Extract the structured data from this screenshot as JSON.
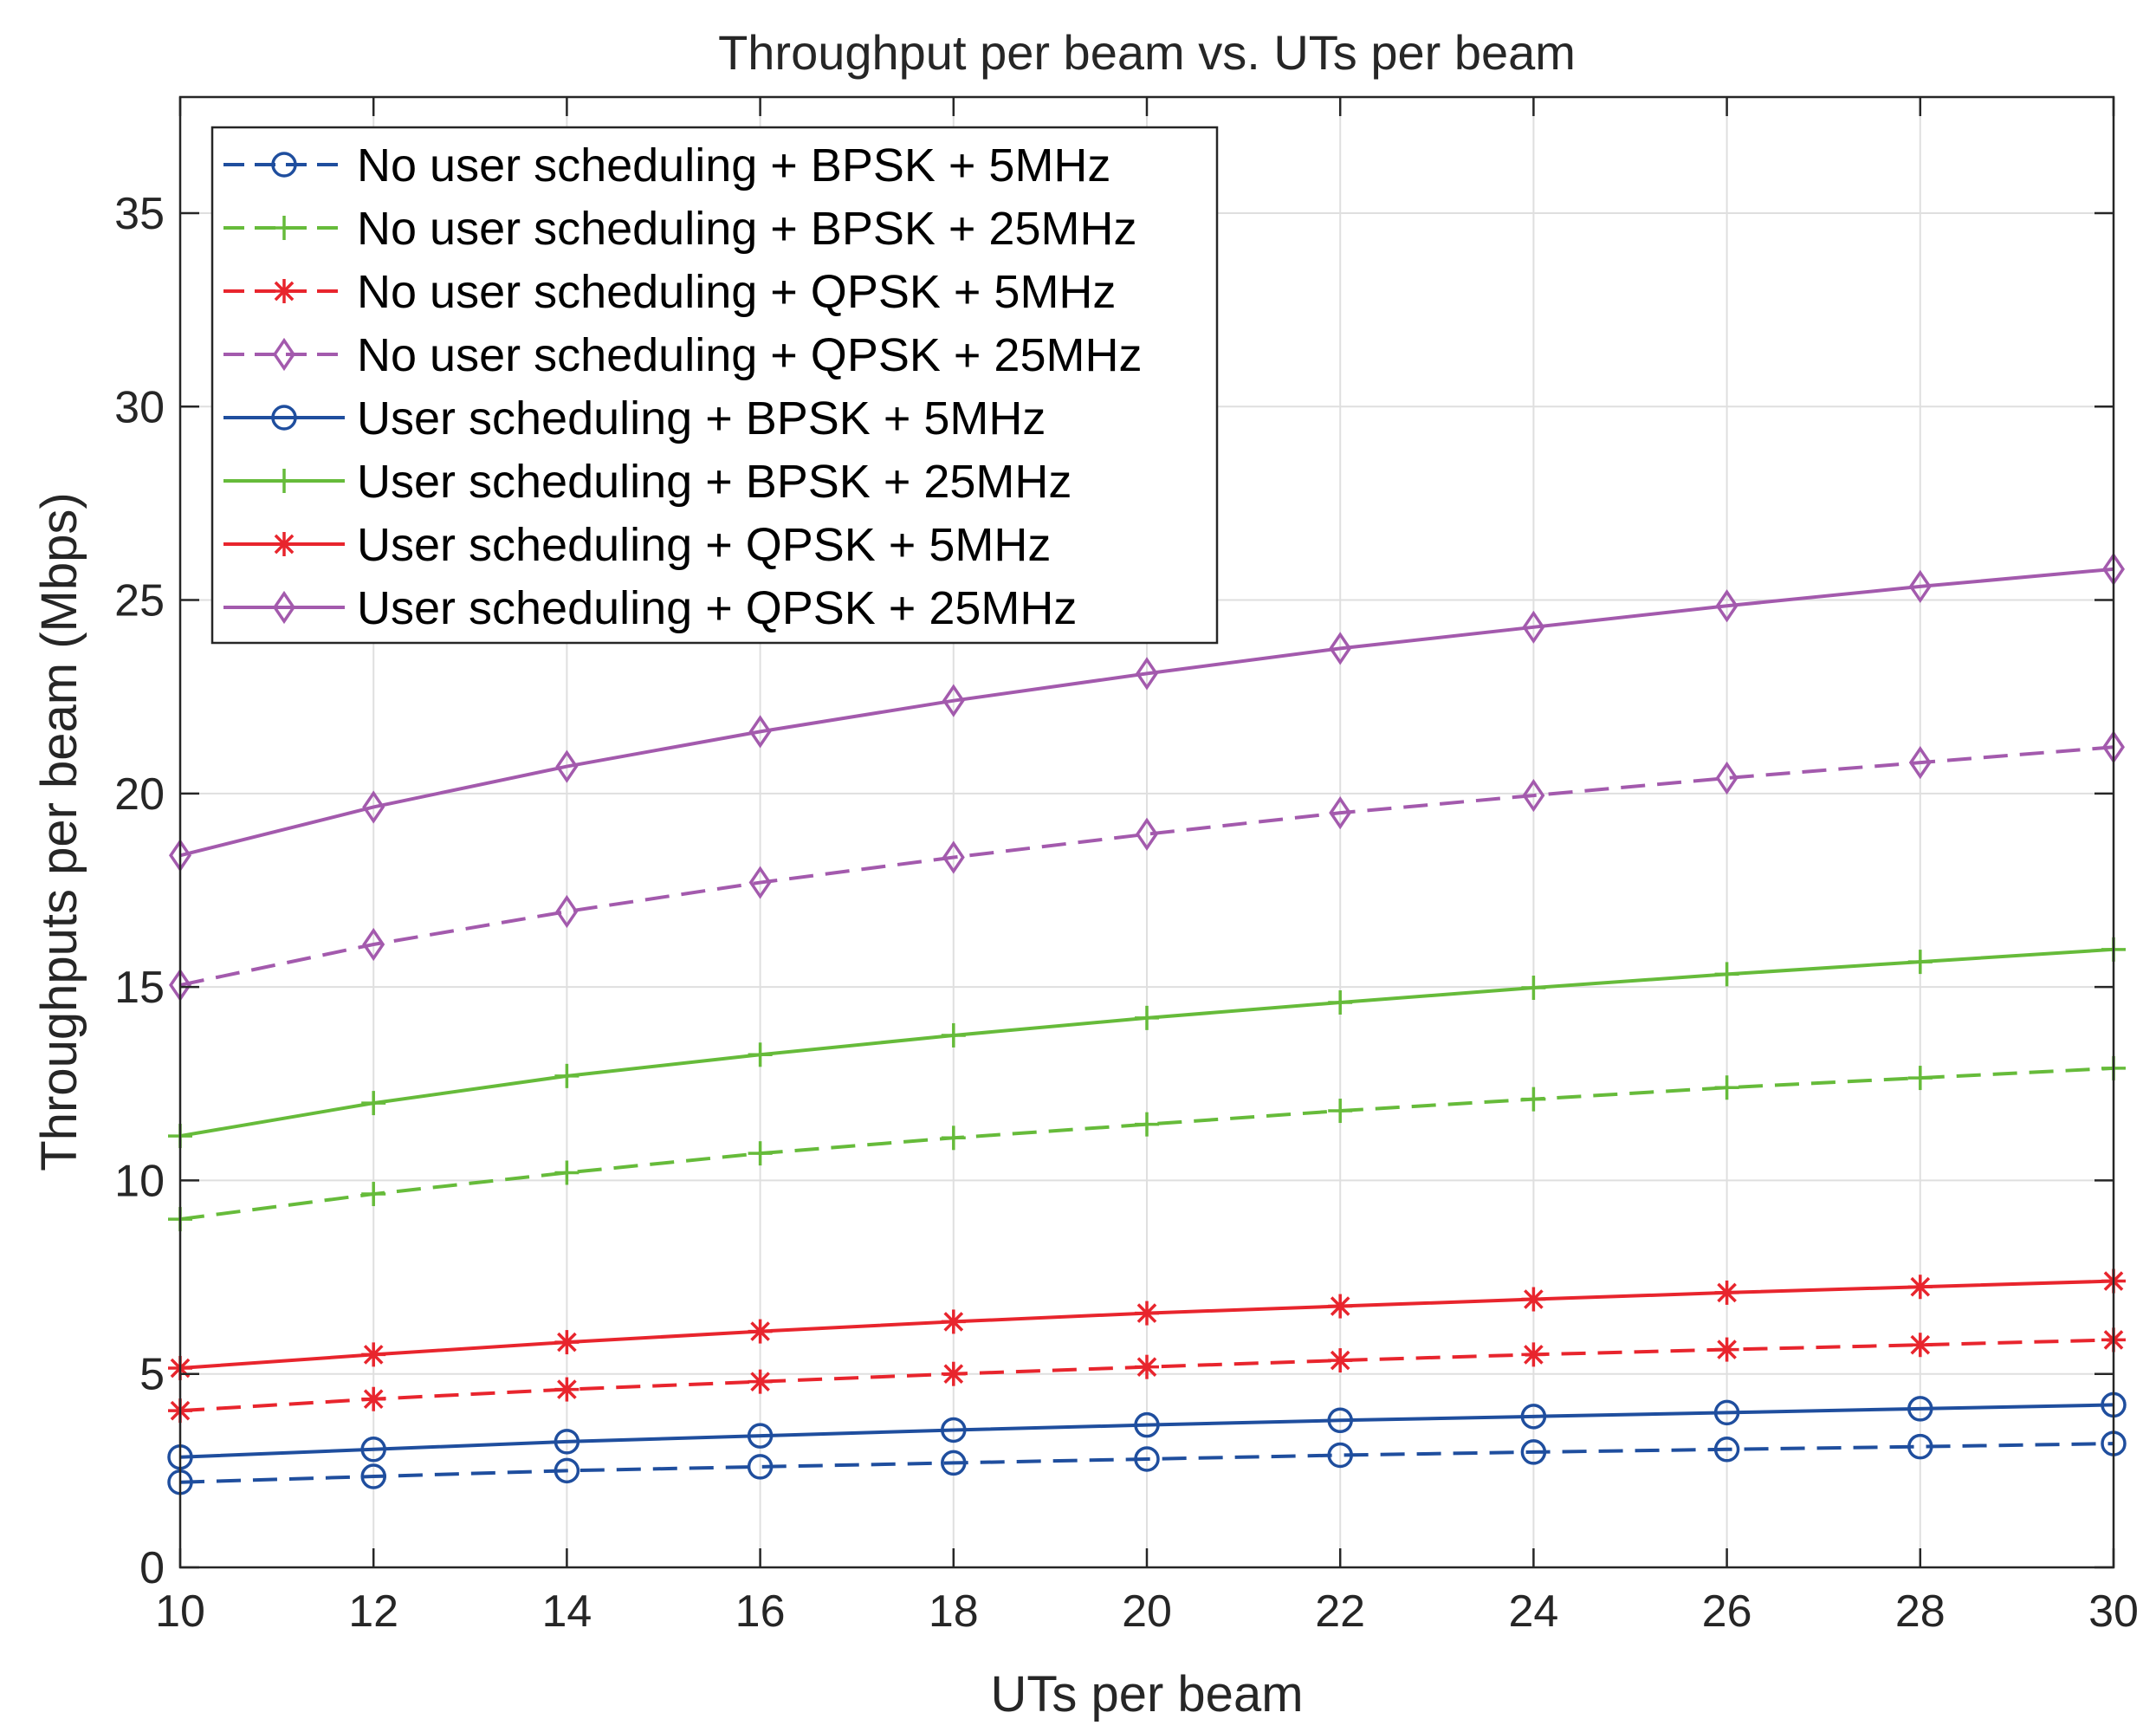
{
  "chart_data": {
    "type": "line",
    "title": "Throughput per beam vs. UTs per beam",
    "xlabel": "UTs per beam",
    "ylabel": "Throughputs per beam (Mbps)",
    "xlim": [
      10,
      30
    ],
    "ylim": [
      0,
      38
    ],
    "xticks": [
      10,
      12,
      14,
      16,
      18,
      20,
      22,
      24,
      26,
      28,
      30
    ],
    "yticks": [
      0,
      5,
      10,
      15,
      20,
      25,
      30,
      35
    ],
    "grid": true,
    "legend_position": "top-left",
    "x": [
      10,
      12,
      14,
      16,
      18,
      20,
      22,
      24,
      26,
      28,
      30
    ],
    "series": [
      {
        "name": "No user scheduling + BPSK + 5MHz",
        "color": "#1f4e9e",
        "dash": "dashed",
        "marker": "circle",
        "values": [
          2.2,
          2.35,
          2.5,
          2.6,
          2.7,
          2.8,
          2.9,
          2.98,
          3.05,
          3.12,
          3.2
        ]
      },
      {
        "name": "No user scheduling + BPSK + 25MHz",
        "color": "#66bb3a",
        "dash": "dashed",
        "marker": "plus",
        "values": [
          9.0,
          9.65,
          10.2,
          10.7,
          11.1,
          11.45,
          11.8,
          12.1,
          12.4,
          12.65,
          12.9
        ]
      },
      {
        "name": "No user scheduling + QPSK + 5MHz",
        "color": "#e8252d",
        "dash": "dashed",
        "marker": "asterisk",
        "values": [
          4.05,
          4.35,
          4.6,
          4.8,
          5.0,
          5.18,
          5.35,
          5.5,
          5.63,
          5.75,
          5.88
        ]
      },
      {
        "name": "No user scheduling + QPSK + 25MHz",
        "color": "#a35aad",
        "dash": "dashed",
        "marker": "diamond",
        "values": [
          15.05,
          16.1,
          16.95,
          17.7,
          18.35,
          18.95,
          19.5,
          19.95,
          20.4,
          20.8,
          21.2
        ]
      },
      {
        "name": "User scheduling + BPSK + 5MHz",
        "color": "#1f4e9e",
        "dash": "solid",
        "marker": "circle",
        "values": [
          2.85,
          3.05,
          3.25,
          3.4,
          3.55,
          3.68,
          3.8,
          3.9,
          4.0,
          4.1,
          4.2
        ]
      },
      {
        "name": "User scheduling + BPSK + 25MHz",
        "color": "#66bb3a",
        "dash": "solid",
        "marker": "plus",
        "values": [
          11.15,
          12.0,
          12.7,
          13.25,
          13.75,
          14.2,
          14.6,
          14.98,
          15.33,
          15.65,
          15.97
        ]
      },
      {
        "name": "User scheduling + QPSK + 5MHz",
        "color": "#e8252d",
        "dash": "solid",
        "marker": "asterisk",
        "values": [
          5.15,
          5.5,
          5.82,
          6.1,
          6.35,
          6.57,
          6.75,
          6.93,
          7.1,
          7.25,
          7.4
        ]
      },
      {
        "name": "User scheduling + QPSK + 25MHz",
        "color": "#a35aad",
        "dash": "solid",
        "marker": "diamond",
        "values": [
          18.4,
          19.65,
          20.7,
          21.6,
          22.4,
          23.1,
          23.75,
          24.3,
          24.85,
          25.35,
          25.8
        ]
      }
    ]
  }
}
